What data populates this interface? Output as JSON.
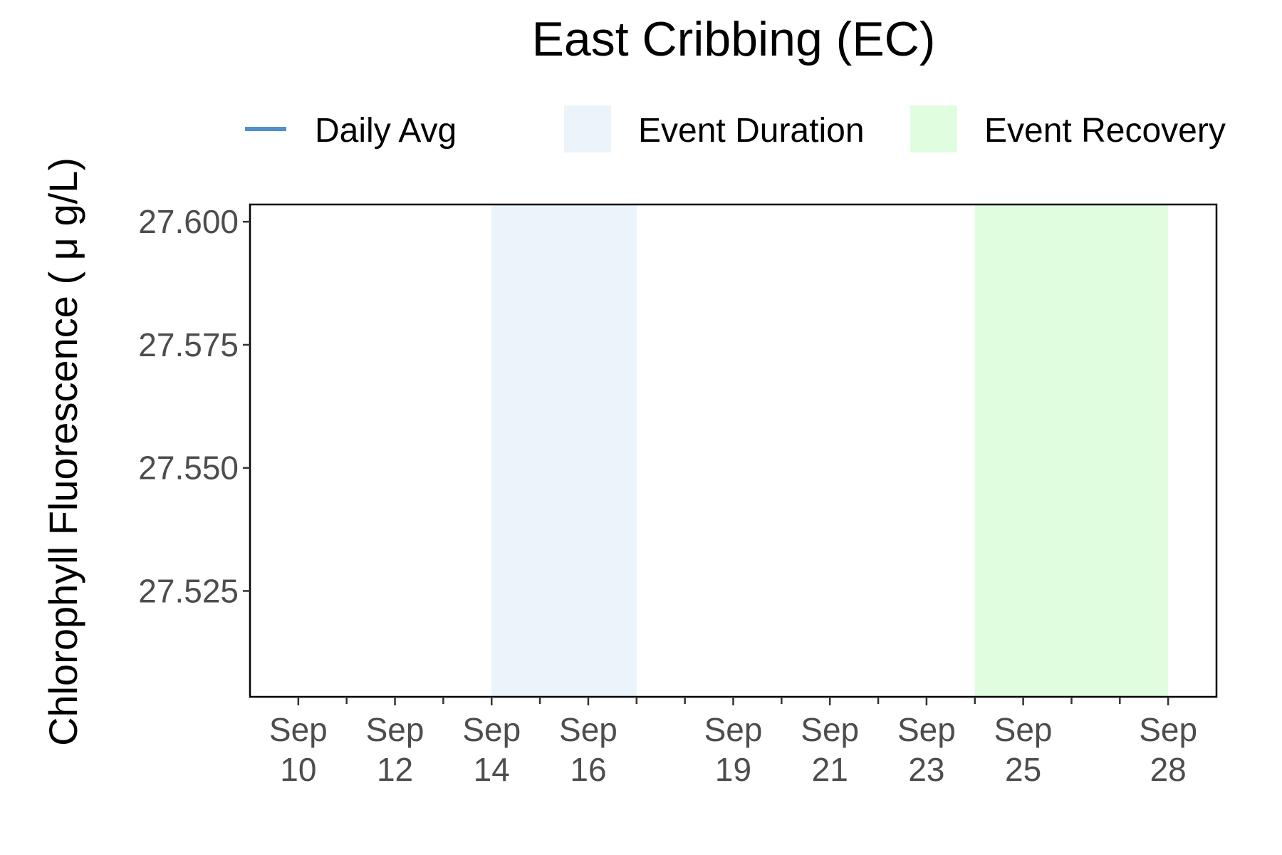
{
  "chart_data": {
    "type": "line",
    "title": "East Cribbing (EC)",
    "ylabel": "Chlorophyll Fluorescence ( μ g/L)",
    "xlabel": "",
    "ylim": [
      27.5035,
      27.6035
    ],
    "xlim": [
      "2023-09-09",
      "2023-09-29"
    ],
    "y_ticks": [
      {
        "value": 27.6,
        "label": "27.600"
      },
      {
        "value": 27.575,
        "label": "27.575"
      },
      {
        "value": 27.55,
        "label": "27.550"
      },
      {
        "value": 27.525,
        "label": "27.525"
      }
    ],
    "x_major_ticks": [
      {
        "date": "2023-09-10",
        "line1": "Sep",
        "line2": "10"
      },
      {
        "date": "2023-09-12",
        "line1": "Sep",
        "line2": "12"
      },
      {
        "date": "2023-09-14",
        "line1": "Sep",
        "line2": "14"
      },
      {
        "date": "2023-09-16",
        "line1": "Sep",
        "line2": "16"
      },
      {
        "date": "2023-09-19",
        "line1": "Sep",
        "line2": "19"
      },
      {
        "date": "2023-09-21",
        "line1": "Sep",
        "line2": "21"
      },
      {
        "date": "2023-09-23",
        "line1": "Sep",
        "line2": "23"
      },
      {
        "date": "2023-09-25",
        "line1": "Sep",
        "line2": "25"
      },
      {
        "date": "2023-09-28",
        "line1": "Sep",
        "line2": "28"
      }
    ],
    "x_minor_ticks": [
      "2023-09-11",
      "2023-09-13",
      "2023-09-15",
      "2023-09-17",
      "2023-09-18",
      "2023-09-20",
      "2023-09-22",
      "2023-09-24",
      "2023-09-26",
      "2023-09-27"
    ],
    "bands": [
      {
        "name": "Event Duration",
        "start": "2023-09-14",
        "end": "2023-09-17",
        "color": "#ebf3fb"
      },
      {
        "name": "Event Recovery",
        "start": "2023-09-24",
        "end": "2023-09-28",
        "color": "#e0fde0"
      }
    ],
    "series": [
      {
        "name": "Daily Avg",
        "color": "#4f90cd",
        "points": []
      }
    ],
    "legend": {
      "position": "top",
      "items": [
        {
          "label": "Daily Avg",
          "kind": "line",
          "color": "#4f90cd"
        },
        {
          "label": "Event Duration",
          "kind": "fill",
          "color": "#ebf3fb"
        },
        {
          "label": "Event Recovery",
          "kind": "fill",
          "color": "#e0fde0"
        }
      ]
    },
    "grid": false
  }
}
